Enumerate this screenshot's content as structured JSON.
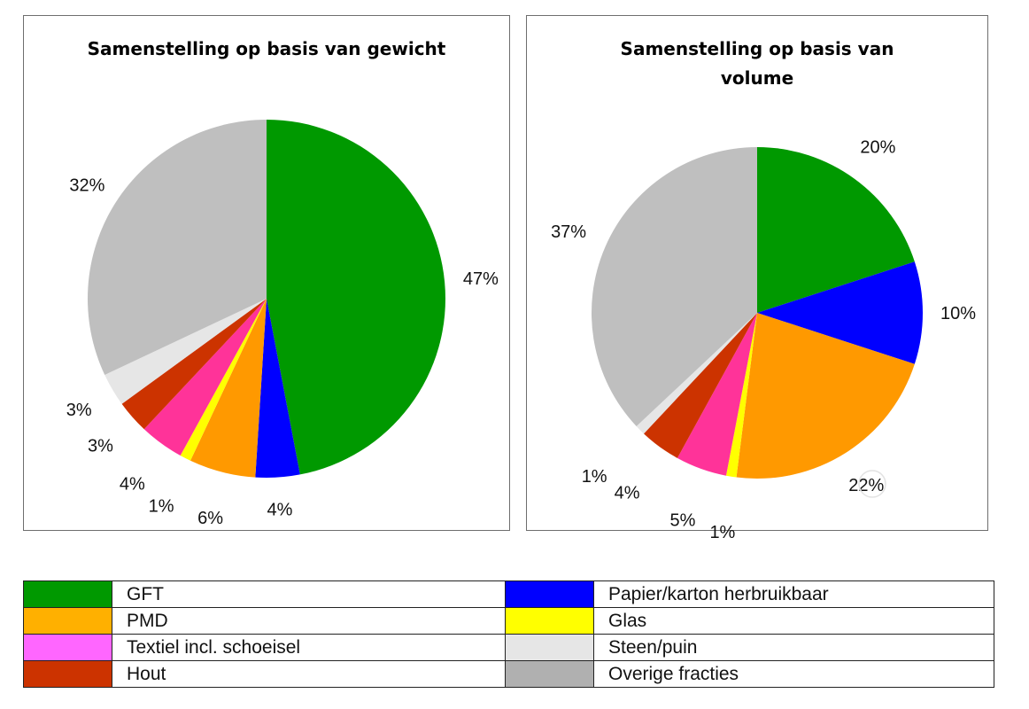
{
  "colors": {
    "GFT": "#009900",
    "Papier/karton herbruikbaar": "#0000ff",
    "PMD": "#ff9900",
    "Glas": "#ffff00",
    "Textiel incl. schoeisel": "#ff3399",
    "Steen/puin": "#e6e6e6",
    "Hout": "#cc3300",
    "Overige fracties": "#bfbfbf"
  },
  "legend": {
    "rows": [
      {
        "left": {
          "label": "GFT",
          "color": "#009900"
        },
        "right": {
          "label": "Papier/karton herbruikbaar",
          "color": "#0000ff"
        }
      },
      {
        "left": {
          "label": "PMD",
          "color": "#ffb000"
        },
        "right": {
          "label": "Glas",
          "color": "#ffff00"
        }
      },
      {
        "left": {
          "label": "Textiel incl. schoeisel",
          "color": "#ff66ff"
        },
        "right": {
          "label": "Steen/puin",
          "color": "#e6e6e6"
        }
      },
      {
        "left": {
          "label": "Hout",
          "color": "#cc3300"
        },
        "right": {
          "label": "Overige fracties",
          "color": "#b0b0b0"
        }
      }
    ]
  },
  "chart_data": [
    {
      "type": "pie",
      "title": "Samenstelling op basis van gewicht",
      "slices": [
        {
          "name": "GFT",
          "value": 47,
          "label": "47%"
        },
        {
          "name": "Papier/karton herbruikbaar",
          "value": 4,
          "label": "4%"
        },
        {
          "name": "PMD",
          "value": 6,
          "label": "6%"
        },
        {
          "name": "Glas",
          "value": 1,
          "label": "1%"
        },
        {
          "name": "Textiel incl. schoeisel",
          "value": 4,
          "label": "4%"
        },
        {
          "name": "Hout",
          "value": 3,
          "label": "3%"
        },
        {
          "name": "Steen/puin",
          "value": 3,
          "label": "3%"
        },
        {
          "name": "Overige fracties",
          "value": 32,
          "label": "32%"
        }
      ]
    },
    {
      "type": "pie",
      "title": "Samenstelling op basis van volume",
      "slices": [
        {
          "name": "GFT",
          "value": 20,
          "label": "20%"
        },
        {
          "name": "Papier/karton herbruikbaar",
          "value": 10,
          "label": "10%"
        },
        {
          "name": "PMD",
          "value": 22,
          "label": "22%"
        },
        {
          "name": "Glas",
          "value": 1,
          "label": "1%"
        },
        {
          "name": "Textiel incl. schoeisel",
          "value": 5,
          "label": "5%"
        },
        {
          "name": "Hout",
          "value": 4,
          "label": "4%"
        },
        {
          "name": "Steen/puin",
          "value": 1,
          "label": "1%"
        },
        {
          "name": "Overige fracties",
          "value": 37,
          "label": "37%"
        }
      ]
    }
  ]
}
